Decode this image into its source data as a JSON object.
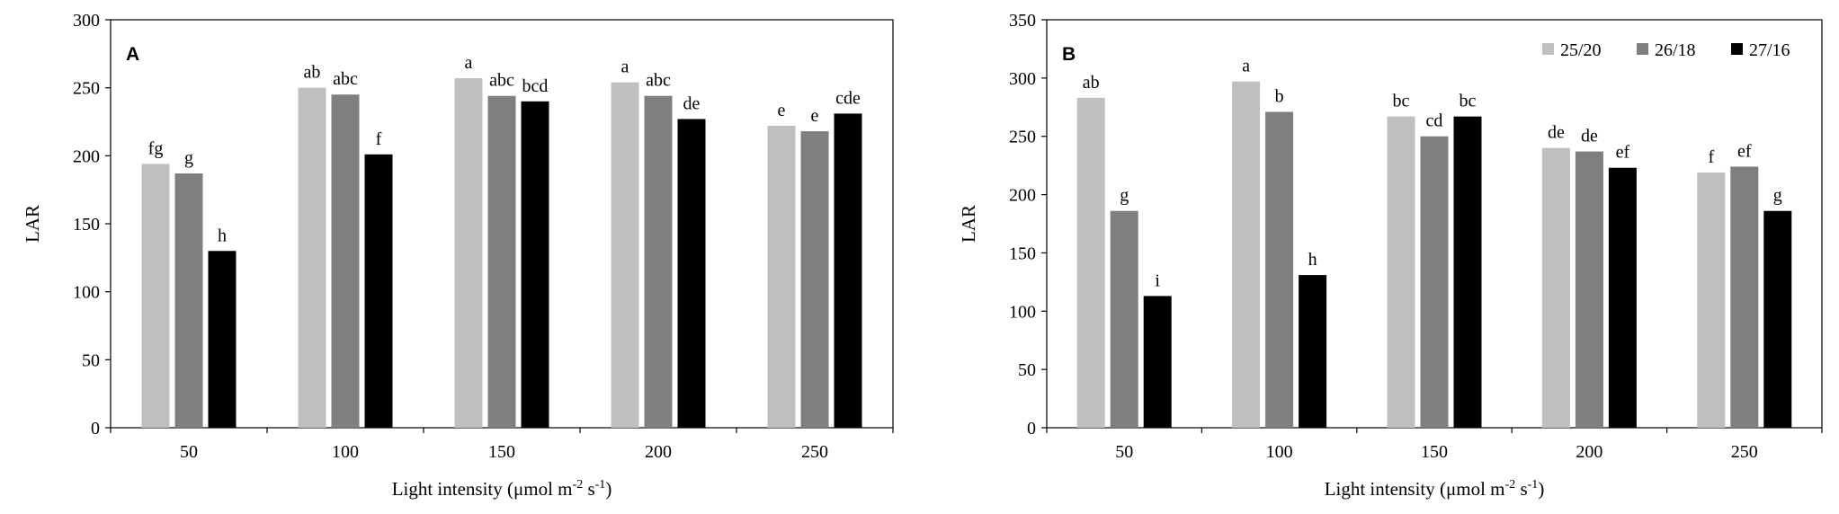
{
  "legend": {
    "entries": [
      {
        "label": "25/20",
        "color": "#BFBFBF"
      },
      {
        "label": "26/18",
        "color": "#7F7F7F"
      },
      {
        "label": "27/16",
        "color": "#000000"
      }
    ]
  },
  "chart_data": [
    {
      "type": "bar",
      "panel_label": "A",
      "title": "",
      "xlabel": "Light intensity (μmol m-2 s-1)",
      "ylabel": "LAR",
      "categories": [
        "50",
        "100",
        "150",
        "200",
        "250"
      ],
      "ylim": [
        0,
        300
      ],
      "yticks": [
        0,
        50,
        100,
        150,
        200,
        250,
        300
      ],
      "series": [
        {
          "name": "25/20",
          "color": "#BFBFBF",
          "values": [
            194,
            250,
            257,
            254,
            222
          ],
          "labels": [
            "fg",
            "ab",
            "a",
            "a",
            "e"
          ]
        },
        {
          "name": "26/18",
          "color": "#7F7F7F",
          "values": [
            187,
            245,
            244,
            244,
            218
          ],
          "labels": [
            "g",
            "abc",
            "abc",
            "abc",
            "e"
          ]
        },
        {
          "name": "27/16",
          "color": "#000000",
          "values": [
            130,
            201,
            240,
            227,
            231
          ],
          "labels": [
            "h",
            "f",
            "bcd",
            "de",
            "cde"
          ]
        }
      ],
      "grid": false,
      "legend": "none"
    },
    {
      "type": "bar",
      "panel_label": "B",
      "title": "",
      "xlabel": "Light intensity (μmol m-2 s-1)",
      "ylabel": "LAR",
      "categories": [
        "50",
        "100",
        "150",
        "200",
        "250"
      ],
      "ylim": [
        0,
        350
      ],
      "yticks": [
        0,
        50,
        100,
        150,
        200,
        250,
        300,
        350
      ],
      "series": [
        {
          "name": "25/20",
          "color": "#BFBFBF",
          "values": [
            283,
            297,
            267,
            240,
            219
          ],
          "labels": [
            "ab",
            "a",
            "bc",
            "de",
            "f"
          ]
        },
        {
          "name": "26/18",
          "color": "#7F7F7F",
          "values": [
            186,
            271,
            250,
            237,
            224
          ],
          "labels": [
            "g",
            "b",
            "cd",
            "de",
            "ef"
          ]
        },
        {
          "name": "27/16",
          "color": "#000000",
          "values": [
            113,
            131,
            267,
            223,
            186
          ],
          "labels": [
            "i",
            "h",
            "bc",
            "ef",
            "g"
          ]
        }
      ],
      "grid": false,
      "legend": "top-right"
    }
  ]
}
